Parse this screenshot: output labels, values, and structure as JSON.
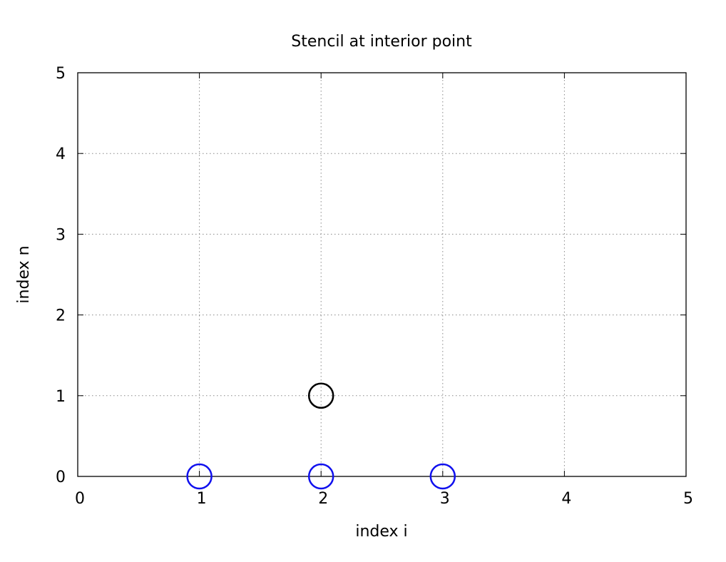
{
  "chart_data": {
    "type": "scatter",
    "title": "Stencil at interior point",
    "xlabel": "index i",
    "ylabel": "index n",
    "xlim": [
      0,
      5
    ],
    "ylim": [
      0,
      5
    ],
    "x_ticks": [
      "0",
      "1",
      "2",
      "3",
      "4",
      "5"
    ],
    "y_ticks": [
      "0",
      "1",
      "2",
      "3",
      "4",
      "5"
    ],
    "grid": true,
    "series": [
      {
        "color": "#000000",
        "marker": "open-circle",
        "points": [
          {
            "x": 2,
            "y": 1
          }
        ]
      },
      {
        "color": "#1010ee",
        "marker": "open-circle",
        "points": [
          {
            "x": 1,
            "y": 0
          },
          {
            "x": 2,
            "y": 0
          },
          {
            "x": 3,
            "y": 0
          }
        ]
      }
    ]
  }
}
